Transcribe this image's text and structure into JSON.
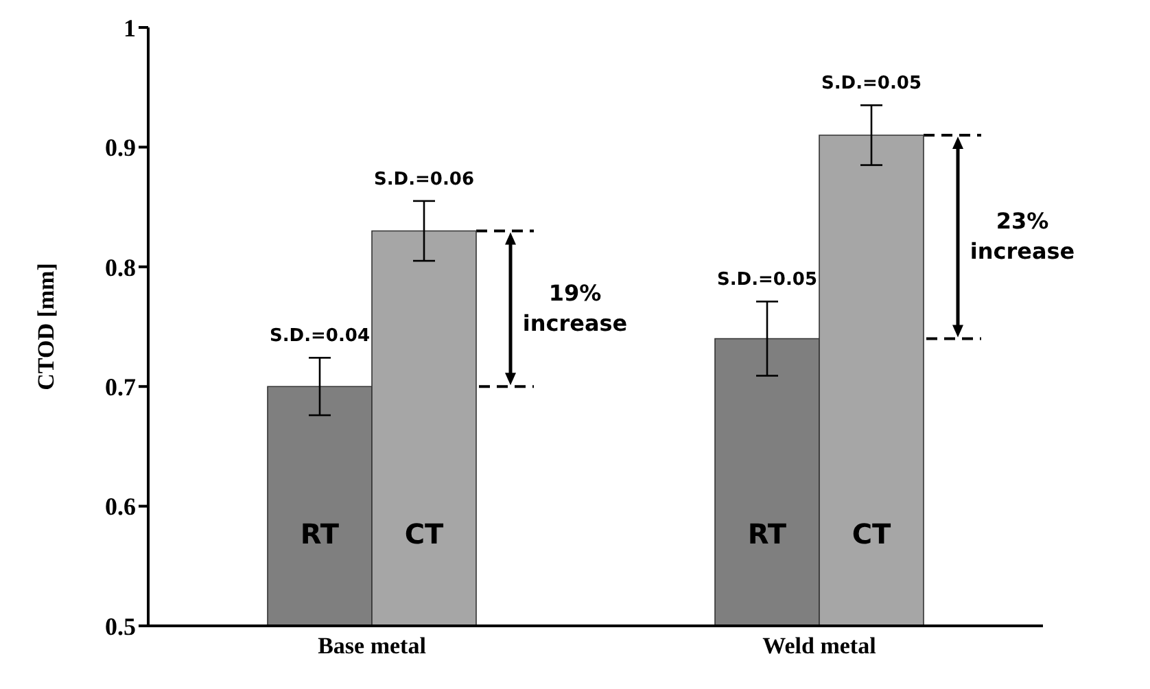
{
  "chart_data": {
    "type": "bar",
    "ylabel": "CTOD [mm]",
    "categories": [
      "Base metal",
      "Weld metal"
    ],
    "series": [
      {
        "name": "RT",
        "color": "#7f7f7f",
        "values": [
          0.7,
          0.74
        ],
        "errors": [
          0.024,
          0.031
        ]
      },
      {
        "name": "CT",
        "color": "#a6a6a6",
        "values": [
          0.83,
          0.91
        ],
        "errors": [
          0.025,
          0.025
        ]
      }
    ],
    "ylim": [
      0.5,
      1
    ],
    "yticks": [
      {
        "value": 0.5,
        "label": "0.5"
      },
      {
        "value": 0.6,
        "label": "0.6"
      },
      {
        "value": 0.7,
        "label": "0.7"
      },
      {
        "value": 0.8,
        "label": "0.8"
      },
      {
        "value": 0.9,
        "label": "0.9"
      },
      {
        "value": 1,
        "label": "1"
      }
    ],
    "grid": false,
    "legend": false,
    "annotations": [
      "S.D.=0.04",
      "S.D.=0.06",
      "S.D.=0.05",
      "S.D.=0.05",
      "19% increase",
      "23% increase"
    ]
  }
}
